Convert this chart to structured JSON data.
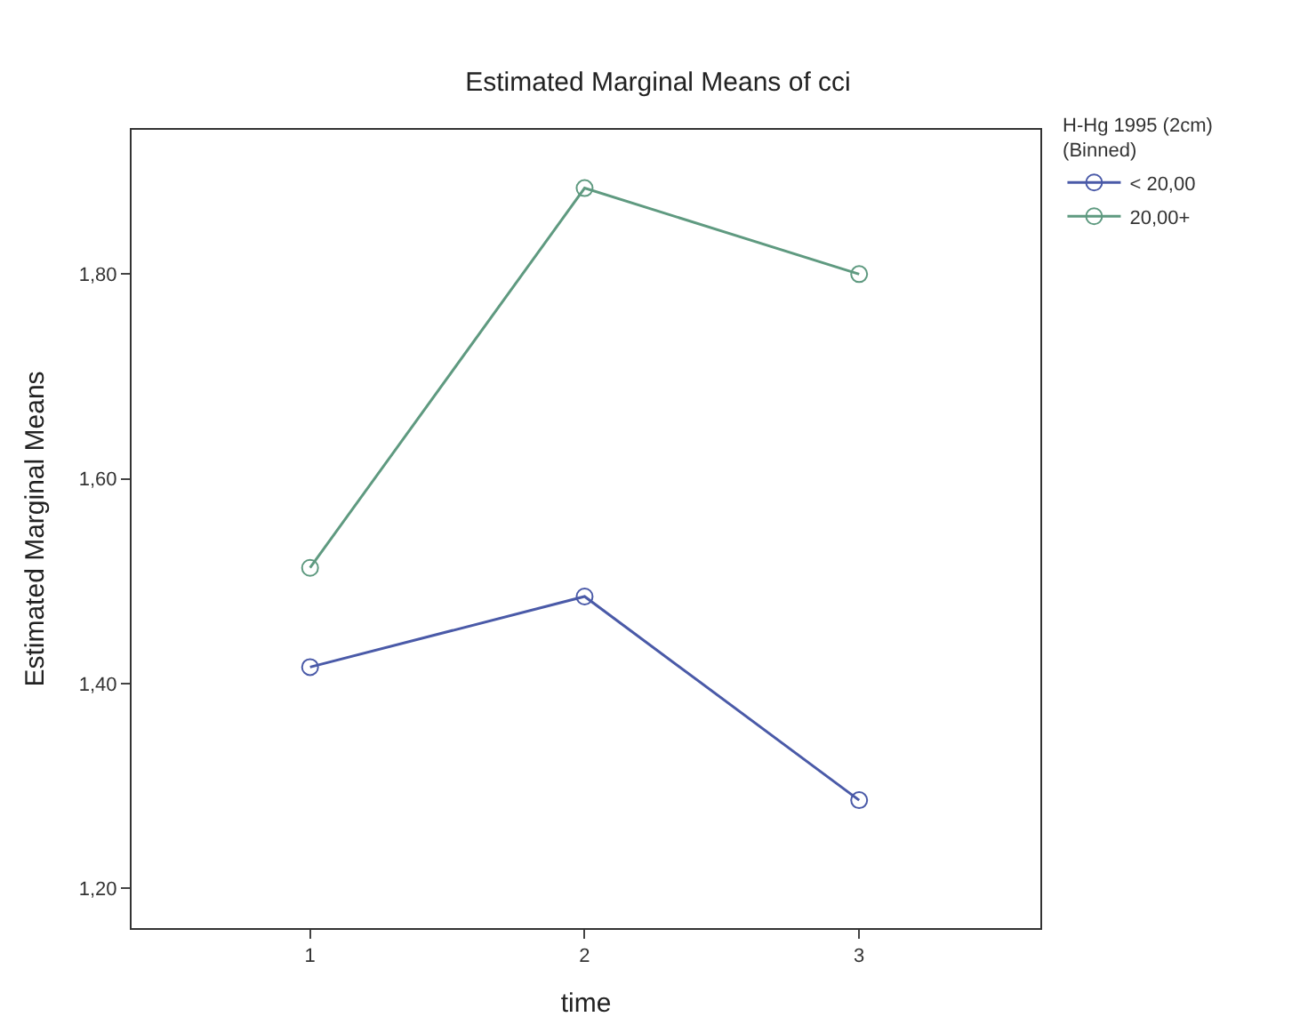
{
  "chart_data": {
    "type": "line",
    "title": "Estimated Marginal Means of cci",
    "xlabel": "time",
    "ylabel": "Estimated Marginal Means",
    "legend_title": "H-Hg 1995 (2cm)\n(Binned)",
    "x": [
      1,
      2,
      3
    ],
    "series": [
      {
        "name": "< 20,00",
        "color": "#4a5aa8",
        "values": [
          1.416,
          1.485,
          1.286
        ]
      },
      {
        "name": "20,00+",
        "color": "#5f9a80",
        "values": [
          1.513,
          1.884,
          1.8
        ]
      }
    ],
    "xlim": [
      0.35,
      3.66
    ],
    "xticks": [
      1,
      2,
      3
    ],
    "ylim": [
      1.161,
      1.941
    ],
    "yticks": [
      {
        "value": 1.2,
        "label": "1,20"
      },
      {
        "value": 1.4,
        "label": "1,40"
      },
      {
        "value": 1.6,
        "label": "1,60"
      },
      {
        "value": 1.8,
        "label": "1,80"
      }
    ],
    "legend": "top right",
    "marker": "circle",
    "line_style": "solid"
  }
}
